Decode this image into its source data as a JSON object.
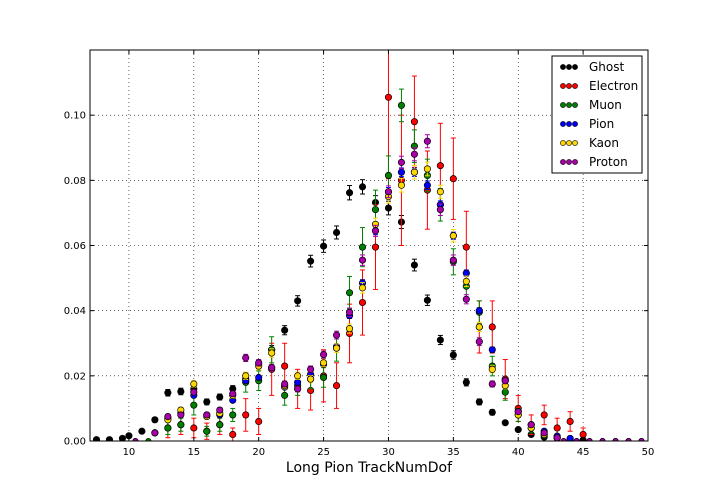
{
  "chart_data": {
    "type": "scatter",
    "title": "",
    "xlabel": "Long Pion TrackNumDof",
    "ylabel": "",
    "xlim": [
      7,
      50
    ],
    "ylim": [
      0,
      0.12
    ],
    "xticks": [
      10,
      15,
      20,
      25,
      30,
      35,
      40,
      45,
      50
    ],
    "yticks": [
      0.0,
      0.02,
      0.04,
      0.06,
      0.08,
      0.1
    ],
    "ytick_labels": [
      "0.00",
      "0.02",
      "0.04",
      "0.06",
      "0.08",
      "0.10"
    ],
    "grid": true,
    "legend_position": "top-right",
    "series": [
      {
        "name": "Ghost",
        "color": "#000000",
        "points": [
          [
            7.5,
            0.0004,
            0.0003
          ],
          [
            8.5,
            0.0004,
            0.0003
          ],
          [
            9.5,
            0.0008,
            0.0004
          ],
          [
            10,
            0.0016,
            0.0004
          ],
          [
            11,
            0.003,
            0.0005
          ],
          [
            12,
            0.0065,
            0.0007
          ],
          [
            13,
            0.0148,
            0.001
          ],
          [
            14,
            0.0152,
            0.001
          ],
          [
            15,
            0.016,
            0.001
          ],
          [
            16,
            0.012,
            0.0009
          ],
          [
            17,
            0.0135,
            0.0009
          ],
          [
            18,
            0.016,
            0.001
          ],
          [
            19,
            0.019,
            0.0011
          ],
          [
            20,
            0.0235,
            0.0012
          ],
          [
            21,
            0.028,
            0.0013
          ],
          [
            22,
            0.034,
            0.0014
          ],
          [
            23,
            0.043,
            0.0016
          ],
          [
            24,
            0.0552,
            0.0018
          ],
          [
            25,
            0.0598,
            0.0019
          ],
          [
            26,
            0.064,
            0.002
          ],
          [
            27,
            0.0762,
            0.0022
          ],
          [
            28,
            0.078,
            0.0022
          ],
          [
            29,
            0.0732,
            0.0021
          ],
          [
            30,
            0.0715,
            0.0021
          ],
          [
            31,
            0.0672,
            0.002
          ],
          [
            32,
            0.054,
            0.0018
          ],
          [
            33,
            0.0432,
            0.0016
          ],
          [
            34,
            0.031,
            0.0014
          ],
          [
            35,
            0.0264,
            0.0013
          ],
          [
            36,
            0.018,
            0.0011
          ],
          [
            37,
            0.012,
            0.0009
          ],
          [
            38,
            0.0088,
            0.0008
          ],
          [
            39,
            0.0056,
            0.0006
          ],
          [
            40,
            0.0035,
            0.0005
          ],
          [
            41,
            0.002,
            0.0004
          ],
          [
            42,
            0.0012,
            0.0003
          ],
          [
            43,
            0.0008,
            0.0003
          ],
          [
            44,
            0.0004,
            0.0002
          ],
          [
            45,
            0.0003,
            0.0002
          ]
        ]
      },
      {
        "name": "Electron",
        "color": "#ff0000",
        "points": [
          [
            13,
            0.004,
            0.003
          ],
          [
            14,
            0.005,
            0.003
          ],
          [
            15,
            0.004,
            0.003
          ],
          [
            16,
            0.003,
            0.0025
          ],
          [
            17,
            0.005,
            0.003
          ],
          [
            18,
            0.002,
            0.002
          ],
          [
            19,
            0.008,
            0.005
          ],
          [
            20,
            0.006,
            0.004
          ],
          [
            21,
            0.022,
            0.008
          ],
          [
            22,
            0.023,
            0.007
          ],
          [
            23,
            0.016,
            0.006
          ],
          [
            24,
            0.0155,
            0.006
          ],
          [
            25,
            0.02,
            0.008
          ],
          [
            26,
            0.017,
            0.007
          ],
          [
            27,
            0.033,
            0.009
          ],
          [
            28,
            0.0425,
            0.01
          ],
          [
            29,
            0.0595,
            0.013
          ],
          [
            30,
            0.1055,
            0.025
          ],
          [
            31,
            0.08,
            0.02
          ],
          [
            32,
            0.098,
            0.014
          ],
          [
            33,
            0.077,
            0.012
          ],
          [
            34,
            0.0845,
            0.013
          ],
          [
            35,
            0.0805,
            0.0125
          ],
          [
            36,
            0.0595,
            0.011
          ],
          [
            37,
            0.035,
            0.008
          ],
          [
            38,
            0.035,
            0.008
          ],
          [
            39,
            0.019,
            0.006
          ],
          [
            40,
            0.01,
            0.004
          ],
          [
            41,
            0.005,
            0.003
          ],
          [
            42,
            0.008,
            0.003
          ],
          [
            43,
            0.004,
            0.003
          ],
          [
            44,
            0.006,
            0.003
          ],
          [
            45,
            0.002,
            0.002
          ]
        ]
      },
      {
        "name": "Muon",
        "color": "#008000",
        "points": [
          [
            13,
            0.004,
            0.002
          ],
          [
            14,
            0.005,
            0.002
          ],
          [
            15,
            0.011,
            0.003
          ],
          [
            16,
            0.003,
            0.0015
          ],
          [
            17,
            0.005,
            0.002
          ],
          [
            18,
            0.008,
            0.002
          ],
          [
            19,
            0.018,
            0.003
          ],
          [
            20,
            0.0185,
            0.003
          ],
          [
            21,
            0.028,
            0.004
          ],
          [
            22,
            0.014,
            0.003
          ],
          [
            23,
            0.017,
            0.003
          ],
          [
            24,
            0.019,
            0.003
          ],
          [
            25,
            0.0195,
            0.003
          ],
          [
            26,
            0.0285,
            0.004
          ],
          [
            27,
            0.0455,
            0.005
          ],
          [
            28,
            0.0595,
            0.006
          ],
          [
            29,
            0.071,
            0.006
          ],
          [
            30,
            0.0815,
            0.006
          ],
          [
            31,
            0.103,
            0.005
          ],
          [
            32,
            0.0905,
            0.005
          ],
          [
            33,
            0.0815,
            0.005
          ],
          [
            34,
            0.0725,
            0.005
          ],
          [
            35,
            0.055,
            0.004
          ],
          [
            36,
            0.0475,
            0.004
          ],
          [
            37,
            0.0395,
            0.0035
          ],
          [
            38,
            0.023,
            0.003
          ],
          [
            39,
            0.015,
            0.0025
          ],
          [
            40,
            0.008,
            0.002
          ],
          [
            41,
            0.004,
            0.0015
          ],
          [
            42,
            0.002,
            0.001
          ],
          [
            43,
            0.001,
            0.0008
          ]
        ]
      },
      {
        "name": "Pion",
        "color": "#0000ff",
        "points": [
          [
            12,
            0.0025,
            0.0003
          ],
          [
            13,
            0.007,
            0.0004
          ],
          [
            14,
            0.0085,
            0.0004
          ],
          [
            15,
            0.014,
            0.0005
          ],
          [
            16,
            0.008,
            0.0004
          ],
          [
            17,
            0.008,
            0.0004
          ],
          [
            18,
            0.0125,
            0.0005
          ],
          [
            19,
            0.0185,
            0.0006
          ],
          [
            20,
            0.0195,
            0.0006
          ],
          [
            21,
            0.0225,
            0.0007
          ],
          [
            22,
            0.0165,
            0.0006
          ],
          [
            23,
            0.018,
            0.0006
          ],
          [
            24,
            0.0205,
            0.0007
          ],
          [
            25,
            0.0235,
            0.0007
          ],
          [
            26,
            0.029,
            0.0008
          ],
          [
            27,
            0.0385,
            0.0009
          ],
          [
            28,
            0.0485,
            0.001
          ],
          [
            29,
            0.0645,
            0.0012
          ],
          [
            30,
            0.0765,
            0.0013
          ],
          [
            31,
            0.0825,
            0.0013
          ],
          [
            32,
            0.0825,
            0.0013
          ],
          [
            33,
            0.0785,
            0.0013
          ],
          [
            34,
            0.0725,
            0.0012
          ],
          [
            35,
            0.063,
            0.0011
          ],
          [
            36,
            0.0515,
            0.001
          ],
          [
            37,
            0.04,
            0.0009
          ],
          [
            38,
            0.028,
            0.0008
          ],
          [
            39,
            0.0185,
            0.0006
          ],
          [
            40,
            0.009,
            0.0004
          ],
          [
            41,
            0.005,
            0.0003
          ],
          [
            42,
            0.003,
            0.0003
          ],
          [
            43,
            0.0015,
            0.0002
          ],
          [
            44,
            0.0008,
            0.0002
          ]
        ]
      },
      {
        "name": "Kaon",
        "color": "#ffd700",
        "points": [
          [
            12,
            0.0025,
            0.0005
          ],
          [
            13,
            0.0065,
            0.0006
          ],
          [
            14,
            0.0095,
            0.0008
          ],
          [
            15,
            0.0175,
            0.001
          ],
          [
            16,
            0.0075,
            0.0007
          ],
          [
            17,
            0.0085,
            0.0007
          ],
          [
            18,
            0.014,
            0.0009
          ],
          [
            19,
            0.02,
            0.0011
          ],
          [
            20,
            0.023,
            0.0012
          ],
          [
            21,
            0.027,
            0.0013
          ],
          [
            22,
            0.017,
            0.001
          ],
          [
            23,
            0.02,
            0.0011
          ],
          [
            24,
            0.019,
            0.0011
          ],
          [
            25,
            0.024,
            0.0012
          ],
          [
            26,
            0.0285,
            0.0013
          ],
          [
            27,
            0.0345,
            0.0014
          ],
          [
            28,
            0.047,
            0.0016
          ],
          [
            29,
            0.0665,
            0.0019
          ],
          [
            30,
            0.075,
            0.002
          ],
          [
            31,
            0.0785,
            0.0021
          ],
          [
            32,
            0.0825,
            0.0021
          ],
          [
            33,
            0.0835,
            0.0021
          ],
          [
            34,
            0.0765,
            0.002
          ],
          [
            35,
            0.063,
            0.0019
          ],
          [
            36,
            0.049,
            0.0016
          ],
          [
            37,
            0.035,
            0.0014
          ],
          [
            38,
            0.022,
            0.0011
          ],
          [
            39,
            0.017,
            0.001
          ],
          [
            40,
            0.008,
            0.0007
          ],
          [
            41,
            0.004,
            0.0005
          ],
          [
            42,
            0.002,
            0.0004
          ],
          [
            43,
            0.001,
            0.0003
          ]
        ]
      },
      {
        "name": "Proton",
        "color": "#aa00aa",
        "points": [
          [
            12,
            0.0025,
            0.0004
          ],
          [
            13,
            0.0075,
            0.0006
          ],
          [
            14,
            0.008,
            0.0006
          ],
          [
            15,
            0.015,
            0.0008
          ],
          [
            16,
            0.008,
            0.0006
          ],
          [
            17,
            0.0095,
            0.0007
          ],
          [
            18,
            0.0145,
            0.0008
          ],
          [
            19,
            0.0255,
            0.0011
          ],
          [
            20,
            0.024,
            0.001
          ],
          [
            21,
            0.0225,
            0.001
          ],
          [
            22,
            0.0175,
            0.0009
          ],
          [
            23,
            0.016,
            0.0009
          ],
          [
            24,
            0.022,
            0.001
          ],
          [
            25,
            0.0265,
            0.0011
          ],
          [
            26,
            0.0325,
            0.0012
          ],
          [
            27,
            0.0395,
            0.0013
          ],
          [
            28,
            0.0555,
            0.0016
          ],
          [
            29,
            0.0645,
            0.0017
          ],
          [
            30,
            0.0765,
            0.0018
          ],
          [
            31,
            0.0855,
            0.0019
          ],
          [
            32,
            0.088,
            0.002
          ],
          [
            33,
            0.092,
            0.002
          ],
          [
            34,
            0.071,
            0.0018
          ],
          [
            35,
            0.0555,
            0.0016
          ],
          [
            36,
            0.0435,
            0.0014
          ],
          [
            37,
            0.0305,
            0.0012
          ],
          [
            38,
            0.0175,
            0.0009
          ],
          [
            39,
            0.0185,
            0.0009
          ],
          [
            40,
            0.009,
            0.0006
          ],
          [
            41,
            0.005,
            0.0005
          ],
          [
            42,
            0.0025,
            0.0004
          ],
          [
            43,
            0.001,
            0.0003
          ]
        ]
      }
    ]
  }
}
